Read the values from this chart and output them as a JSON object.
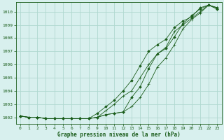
{
  "xlabel": "Graphe pression niveau de la mer (hPa)",
  "xlim": [
    -0.5,
    23.5
  ],
  "ylim": [
    1001.5,
    1010.7
  ],
  "yticks": [
    1002,
    1003,
    1004,
    1005,
    1006,
    1007,
    1008,
    1009,
    1010
  ],
  "xticks": [
    0,
    1,
    2,
    3,
    4,
    5,
    6,
    7,
    8,
    9,
    10,
    11,
    12,
    13,
    14,
    15,
    16,
    17,
    18,
    19,
    20,
    21,
    22,
    23
  ],
  "background_color": "#d8f0ee",
  "grid_color": "#b0d8d0",
  "line_color": "#1a5c1a",
  "series": [
    [
      1002.1,
      1002.0,
      1002.0,
      1001.9,
      1001.9,
      1001.9,
      1001.9,
      1001.9,
      1001.9,
      1002.0,
      1002.5,
      1003.0,
      1003.6,
      1004.0,
      1005.0,
      1006.0,
      1006.8,
      1007.3,
      1008.5,
      1009.0,
      1009.5,
      1010.0,
      1010.5,
      1010.2
    ],
    [
      1002.1,
      1002.0,
      1002.0,
      1001.9,
      1001.9,
      1001.9,
      1001.9,
      1001.9,
      1001.9,
      1002.3,
      1002.8,
      1003.3,
      1004.0,
      1004.8,
      1005.9,
      1007.0,
      1007.5,
      1007.9,
      1008.8,
      1009.3,
      1009.6,
      1010.3,
      1010.5,
      1010.2
    ],
    [
      1002.1,
      1002.0,
      1002.0,
      1001.9,
      1001.9,
      1001.9,
      1001.9,
      1001.9,
      1001.9,
      1002.0,
      1002.2,
      1002.3,
      1002.4,
      1002.8,
      1003.5,
      1004.5,
      1005.8,
      1006.5,
      1007.5,
      1008.7,
      1009.4,
      1009.9,
      1010.5,
      1010.3
    ],
    [
      1002.1,
      1002.0,
      1002.0,
      1001.9,
      1001.9,
      1001.9,
      1001.9,
      1001.9,
      1001.9,
      1002.0,
      1002.2,
      1002.3,
      1002.4,
      1003.5,
      1004.3,
      1005.7,
      1006.8,
      1007.2,
      1008.1,
      1009.1,
      1009.7,
      1010.2,
      1010.5,
      1010.3
    ]
  ],
  "fig_width": 3.2,
  "fig_height": 2.0,
  "fig_dpi": 100
}
